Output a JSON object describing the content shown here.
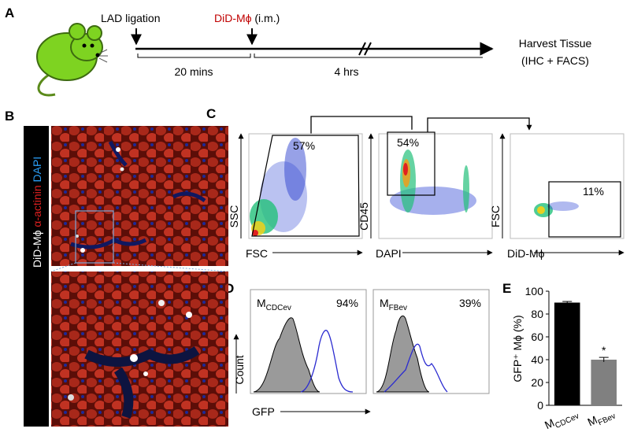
{
  "panel_labels": [
    "A",
    "B",
    "C",
    "D",
    "E"
  ],
  "timeline": {
    "events": [
      {
        "label": "LAD ligation"
      },
      {
        "label_colored": "DiD-Mϕ",
        "label_rest": " (i.m.)"
      }
    ],
    "intervals": [
      "20 mins",
      "4 hrs"
    ],
    "endpoint": [
      "Harvest Tissue",
      "(IHC + FACS)"
    ]
  },
  "microscopy": {
    "stain_labels": [
      "DiD-Mϕ",
      "α-actinin",
      "DAPI"
    ]
  },
  "flow": {
    "plots": [
      {
        "x_label": "FSC",
        "y_label": "SSC",
        "gate_percent": "57%"
      },
      {
        "x_label": "DAPI",
        "y_label": "CD45",
        "gate_percent": "54%"
      },
      {
        "x_label": "DiD-Mϕ",
        "y_label": "FSC",
        "gate_percent": "11%"
      }
    ]
  },
  "histograms": {
    "y_label": "Count",
    "x_label": "GFP",
    "plots": [
      {
        "base": "M",
        "sub": "CDCev",
        "percent": "94%"
      },
      {
        "base": "M",
        "sub": "FBev",
        "percent": "39%"
      }
    ]
  },
  "chart_data": {
    "type": "bar",
    "y_label": "GFP⁺ Mϕ (%)",
    "categories": [
      {
        "base": "M",
        "sub": "CDCev"
      },
      {
        "base": "M",
        "sub": "FBev"
      }
    ],
    "values": [
      90,
      40
    ],
    "errors": [
      1,
      2
    ],
    "colors": [
      "#000000",
      "#808080"
    ],
    "ylim": [
      0,
      100
    ],
    "yticks": [
      0,
      20,
      40,
      60,
      80,
      100
    ],
    "annotations": [
      "*"
    ]
  }
}
